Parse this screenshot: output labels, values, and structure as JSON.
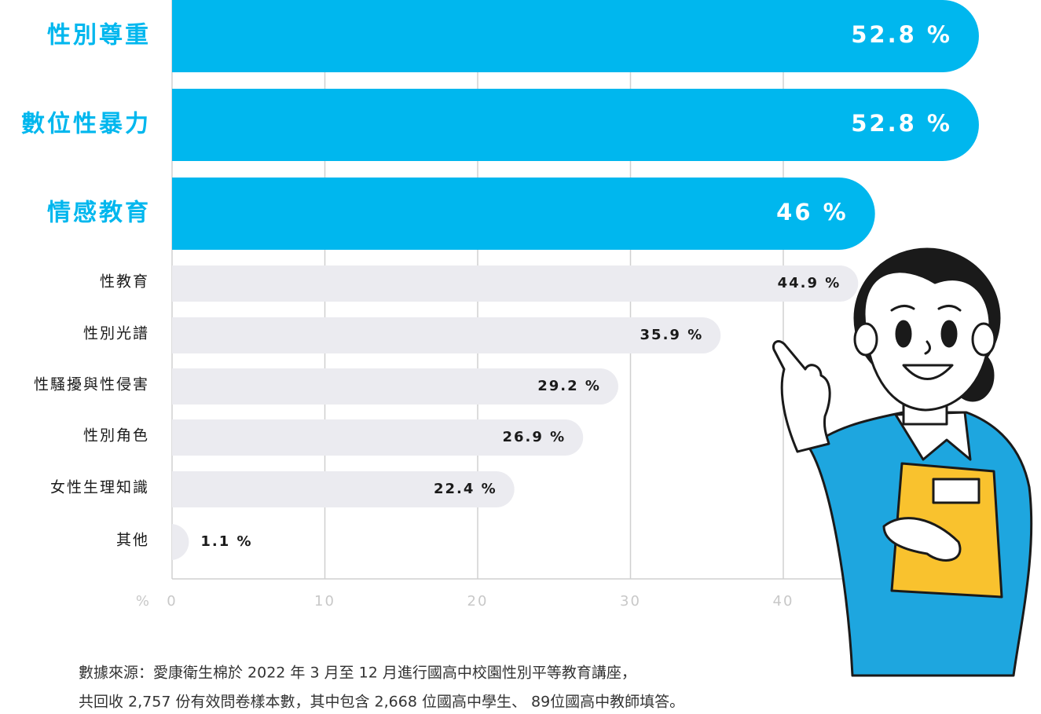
{
  "chart_data": {
    "type": "bar",
    "orientation": "horizontal",
    "categories": [
      "性別尊重",
      "數位性暴力",
      "情感教育",
      "性教育",
      "性別光譜",
      "性騷擾與性侵害",
      "性別角色",
      "女性生理知識",
      "其他"
    ],
    "values": [
      52.8,
      52.8,
      46,
      44.9,
      35.9,
      29.2,
      26.9,
      22.4,
      1.1
    ],
    "value_labels": [
      "52.8 %",
      "52.8 %",
      "46 %",
      "44.9 %",
      "35.9 %",
      "29.2 %",
      "26.9 %",
      "22.4 %",
      "1.1 %"
    ],
    "colors": [
      "#00b7ee",
      "#00b7ee",
      "#00b7ee",
      "#ebebf0",
      "#ebebf0",
      "#ebebf0",
      "#ebebf0",
      "#ebebf0",
      "#ebebf0"
    ],
    "x_label": "%",
    "xlim": [
      0,
      50
    ],
    "xticks": [
      0,
      10,
      20,
      30,
      40
    ],
    "grid": true,
    "source_note": [
      "數據來源：愛康衛生棉於 2022 年 3 月至 12 月進行國高中校園性別平等教育講座，",
      "共回收 2,757 份有效問卷樣本數，其中包含 2,668 位國高中學生、 89位國高中教師填答。"
    ]
  }
}
